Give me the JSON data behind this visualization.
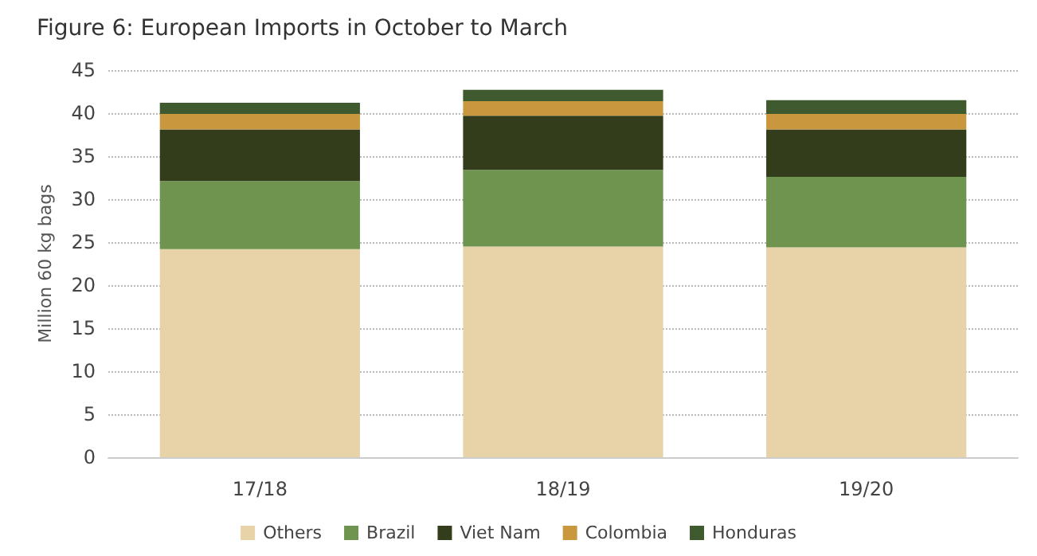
{
  "chart_data": {
    "type": "bar",
    "title": "Figure 6: European Imports in October to March",
    "ylabel": "Million 60 kg bags",
    "categories": [
      "17/18",
      "18/19",
      "19/20"
    ],
    "stacked": true,
    "series": [
      {
        "name": "Others",
        "color": "#e8d3a8",
        "values": [
          24.2,
          24.5,
          24.4
        ]
      },
      {
        "name": "Brazil",
        "color": "#6f9450",
        "values": [
          7.9,
          8.9,
          8.2
        ]
      },
      {
        "name": "Viet Nam",
        "color": "#333d1c",
        "values": [
          6.0,
          6.3,
          5.5
        ]
      },
      {
        "name": "Colombia",
        "color": "#c9983e",
        "values": [
          1.8,
          1.7,
          1.8
        ]
      },
      {
        "name": "Honduras",
        "color": "#3f5a2e",
        "values": [
          1.3,
          1.3,
          1.6
        ]
      }
    ],
    "ylim": [
      0,
      45
    ],
    "yticks": [
      0,
      5,
      10,
      15,
      20,
      25,
      30,
      35,
      40,
      45
    ],
    "grid": "y",
    "legend": "bottom"
  }
}
